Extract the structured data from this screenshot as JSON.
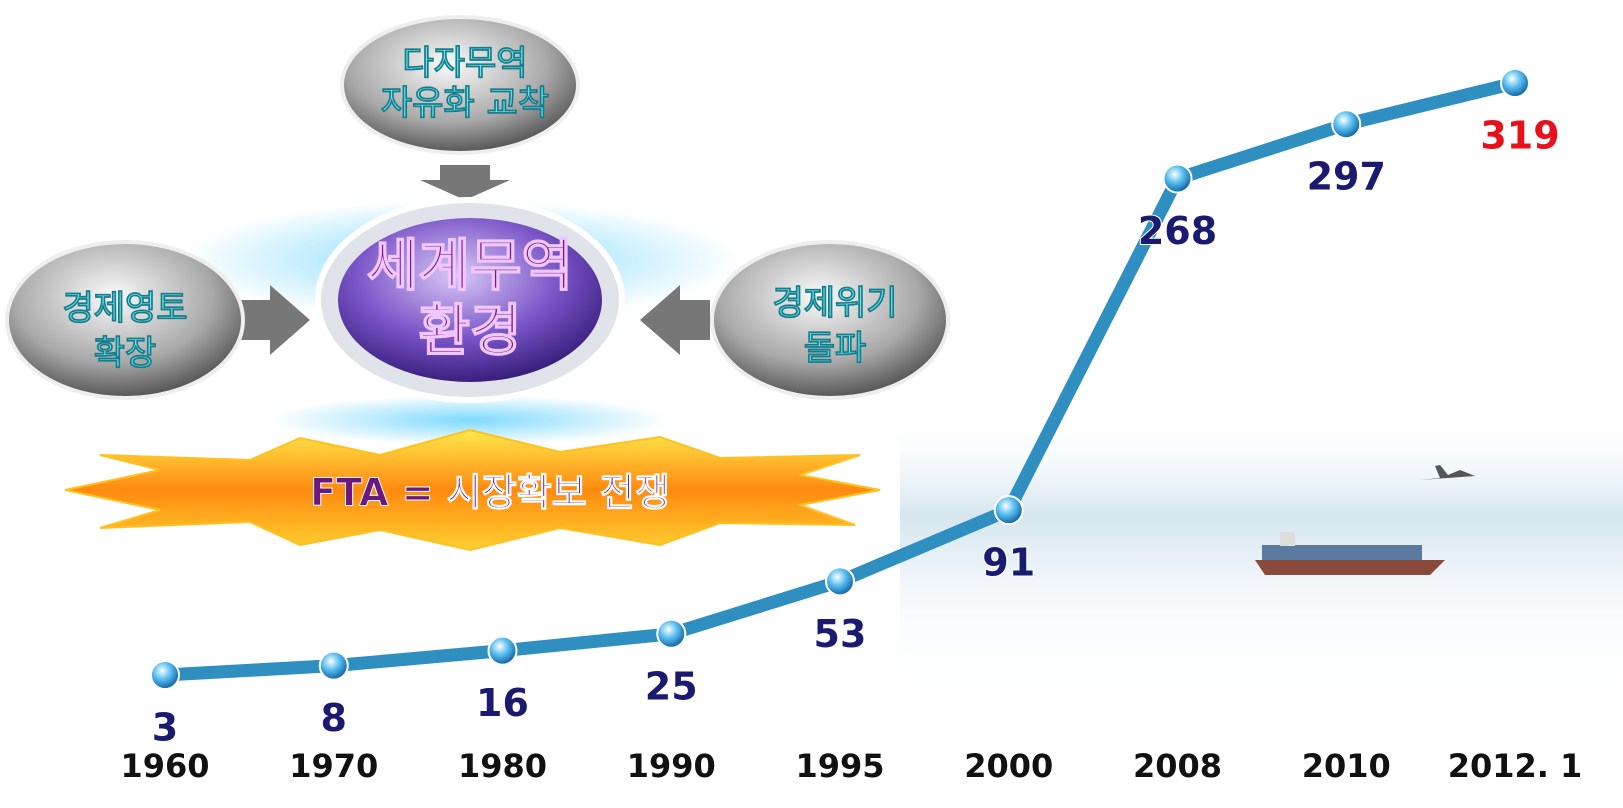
{
  "chart_data": {
    "type": "line",
    "categories": [
      "1960",
      "1970",
      "1980",
      "1990",
      "1995",
      "2000",
      "2008",
      "2010",
      "2012. 1"
    ],
    "values": [
      3,
      8,
      16,
      25,
      53,
      91,
      268,
      297,
      319
    ],
    "color": "#2f8fc0",
    "label_colors": [
      "#1a1a70",
      "#1a1a70",
      "#1a1a70",
      "#1a1a70",
      "#1a1a70",
      "#1a1a70",
      "#1a1a70",
      "#1a1a70",
      "#e8101a"
    ],
    "diagram": {
      "top": [
        "다자무역",
        "자유화 교착"
      ],
      "center": [
        "세계무역",
        "환경"
      ],
      "left": [
        "경제영토",
        "확장"
      ],
      "right": [
        "경제위기",
        "돌파"
      ],
      "banner": "FTA = 시장확보 전쟁"
    }
  }
}
